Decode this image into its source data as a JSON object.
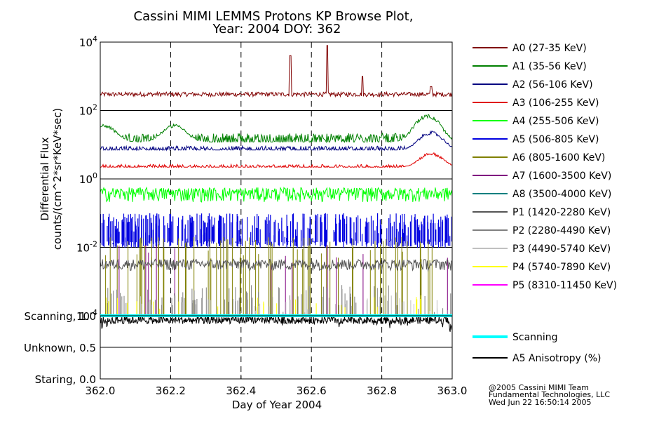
{
  "title_line1": "Cassini MIMI LEMMS Protons KP Browse Plot,",
  "title_line2": "Year: 2004 DOY: 362",
  "footer": {
    "line1": "@2005 Cassini MIMI Team",
    "line2": "Fundamental Technologies, LLC",
    "line3": "Wed Jun 22 16:50:14 2005"
  },
  "chart_data": [
    {
      "type": "line",
      "title": "Cassini MIMI LEMMS Protons KP Browse Plot, Year: 2004 DOY: 362",
      "xlabel": "Day of Year 2004",
      "ylabel_line1": "Differential Flux",
      "ylabel_line2": "counts/(cm^2*sr*KeV*sec)",
      "yscale": "log",
      "xlim": [
        362.0,
        363.0
      ],
      "ylim": [
        0.0001,
        10000
      ],
      "x_ticks": [
        362.0,
        362.2,
        362.4,
        362.6,
        362.8,
        363.0
      ],
      "x_tick_labels": [
        "362.0",
        "362.2",
        "362.4",
        "362.6",
        "362.8",
        "363.0"
      ],
      "y_tick_labels": [
        {
          "base": "10",
          "exp": "4",
          "value": 10000
        },
        {
          "base": "10",
          "exp": "2",
          "value": 100
        },
        {
          "base": "10",
          "exp": "0",
          "value": 1
        },
        {
          "base": "10",
          "exp": "-2",
          "value": 0.01
        },
        {
          "base": "10",
          "exp": "-4",
          "value": 0.0001
        }
      ],
      "series": [
        {
          "name": "A0 (27-35 KeV)",
          "color": "#800000",
          "baseline": 300,
          "spikes": [
            {
              "x": 362.54,
              "y": 4000
            },
            {
              "x": 362.645,
              "y": 8000
            },
            {
              "x": 362.745,
              "y": 1000
            },
            {
              "x": 362.94,
              "y": 500
            }
          ]
        },
        {
          "name": "A1 (35-56 KeV)",
          "color": "#008000",
          "baseline": 12,
          "bumps": [
            {
              "x": 362.01,
              "y": 40
            },
            {
              "x": 362.21,
              "y": 40
            },
            {
              "x": 362.93,
              "y": 80
            }
          ]
        },
        {
          "name": "A2 (56-106 KeV)",
          "color": "#000080",
          "baseline": 7,
          "bumps": [
            {
              "x": 362.94,
              "y": 25
            }
          ]
        },
        {
          "name": "A3 (106-255 KeV)",
          "color": "#e00000",
          "baseline": 2.2,
          "bumps": [
            {
              "x": 362.94,
              "y": 6
            }
          ]
        },
        {
          "name": "A4 (255-506 KeV)",
          "color": "#00ff00",
          "baseline": 0.35
        },
        {
          "name": "A5 (506-805 KeV)",
          "color": "#0000e0",
          "baseline": 0.04
        },
        {
          "name": "A6 (805-1600 KeV)",
          "color": "#808000",
          "baseline": 0.015
        },
        {
          "name": "A7 (1600-3500 KeV)",
          "color": "#800080",
          "baseline": 0.005
        },
        {
          "name": "A8 (3500-4000 KeV)",
          "color": "#008080",
          "baseline": 0.004
        },
        {
          "name": "P1 (1420-2280 KeV)",
          "color": "#555555",
          "baseline": 0.003
        },
        {
          "name": "P2 (2280-4490 KeV)",
          "color": "#808080",
          "baseline": 0.0003
        },
        {
          "name": "P3 (4490-5740 KeV)",
          "color": "#c0c0c0",
          "baseline": 0.0002
        },
        {
          "name": "P4 (5740-7890 KeV)",
          "color": "#ffff00",
          "baseline": 0.0002
        },
        {
          "name": "P5 (8310-11450 KeV)",
          "color": "#ff00ff",
          "baseline": 0.0001
        }
      ]
    },
    {
      "type": "line",
      "xlim": [
        362.0,
        363.0
      ],
      "ylim": [
        0.0,
        1.0
      ],
      "y_tick_labels": [
        "Scanning, 1.0",
        "Unknown, 0.5",
        "Staring, 0.0"
      ],
      "series": [
        {
          "name": "Scanning",
          "color": "#00ffff",
          "value": 1.0
        },
        {
          "name": "A5 Anisotropy (%)",
          "color": "#000000",
          "baseline": 0.9
        }
      ]
    }
  ]
}
